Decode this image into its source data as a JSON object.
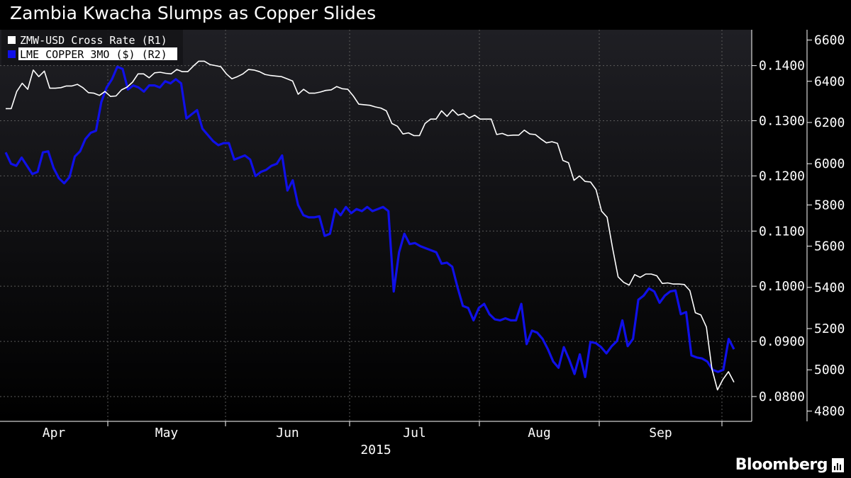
{
  "header": {
    "title": "Zambia Kwacha Slumps as Copper Slides"
  },
  "brand": {
    "name": "Bloomberg"
  },
  "colors": {
    "background_top": "#1f1f24",
    "background_bottom": "#000000",
    "zmw": "#ffffff",
    "copper": "#1010e8"
  },
  "chart_data": {
    "type": "line",
    "title": "Zambia Kwacha Slumps as Copper Slides",
    "x_labels": [
      "Apr",
      "May",
      "Jun",
      "Jul",
      "Aug",
      "Sep"
    ],
    "x_year": "2015",
    "grid": true,
    "legend_position": "top-left",
    "axes": {
      "r1": {
        "min": 0.0755,
        "max": 0.1465,
        "ticks": [
          "0.0800",
          "0.0900",
          "0.1000",
          "0.1100",
          "0.1200",
          "0.1300",
          "0.1400"
        ]
      },
      "r2": {
        "min": 4750,
        "max": 6650,
        "ticks": [
          "4800",
          "5000",
          "5200",
          "5400",
          "5600",
          "5800",
          "6000",
          "6200",
          "6400",
          "6600"
        ]
      }
    },
    "series": [
      {
        "name": "ZMW-USD Cross Rate  (R1)",
        "axis": "r1",
        "values": [
          0.1322,
          0.1322,
          0.1353,
          0.1368,
          0.1357,
          0.1392,
          0.138,
          0.139,
          0.1359,
          0.1359,
          0.136,
          0.1363,
          0.1363,
          0.1366,
          0.136,
          0.1351,
          0.135,
          0.1346,
          0.1353,
          0.1344,
          0.1345,
          0.1356,
          0.1361,
          0.137,
          0.1385,
          0.1385,
          0.1378,
          0.1387,
          0.1388,
          0.1386,
          0.1385,
          0.1393,
          0.1389,
          0.1389,
          0.1399,
          0.1408,
          0.1408,
          0.1402,
          0.14,
          0.1398,
          0.1385,
          0.1376,
          0.138,
          0.1385,
          0.1393,
          0.1392,
          0.1389,
          0.1384,
          0.1382,
          0.1381,
          0.138,
          0.1376,
          0.1372,
          0.1348,
          0.1357,
          0.135,
          0.135,
          0.1352,
          0.1355,
          0.1356,
          0.1362,
          0.1358,
          0.1357,
          0.1345,
          0.133,
          0.1329,
          0.1328,
          0.1325,
          0.1323,
          0.1318,
          0.1295,
          0.129,
          0.1276,
          0.1278,
          0.1273,
          0.1273,
          0.1295,
          0.1303,
          0.1303,
          0.1318,
          0.1308,
          0.132,
          0.131,
          0.1313,
          0.1305,
          0.131,
          0.1303,
          0.1303,
          0.1303,
          0.1275,
          0.1277,
          0.1273,
          0.1274,
          0.1274,
          0.1283,
          0.1276,
          0.1275,
          0.1267,
          0.126,
          0.1262,
          0.1259,
          0.1228,
          0.1224,
          0.1192,
          0.12,
          0.119,
          0.1189,
          0.1175,
          0.1136,
          0.1125,
          0.1069,
          0.1017,
          0.1007,
          0.1002,
          0.1021,
          0.1016,
          0.1022,
          0.1022,
          0.1019,
          0.1005,
          0.1006,
          0.1004,
          0.1004,
          0.1003,
          0.0992,
          0.0952,
          0.0948,
          0.0926,
          0.085,
          0.0812,
          0.0831,
          0.0845,
          0.0826
        ]
      },
      {
        "name": "LME COPPER 3MO ($)  (R2)",
        "axis": "r2",
        "values": [
          6055,
          6000,
          5990,
          6030,
          5990,
          5950,
          5960,
          6055,
          6060,
          5980,
          5930,
          5905,
          5935,
          6035,
          6060,
          6120,
          6150,
          6160,
          6300,
          6370,
          6410,
          6470,
          6460,
          6360,
          6380,
          6370,
          6350,
          6380,
          6380,
          6370,
          6400,
          6390,
          6410,
          6390,
          6220,
          6240,
          6260,
          6170,
          6140,
          6110,
          6090,
          6100,
          6100,
          6020,
          6030,
          6040,
          6020,
          5940,
          5960,
          5970,
          5990,
          6000,
          6040,
          5870,
          5920,
          5800,
          5750,
          5740,
          5740,
          5745,
          5650,
          5660,
          5780,
          5750,
          5790,
          5760,
          5780,
          5770,
          5790,
          5770,
          5780,
          5790,
          5770,
          5380,
          5570,
          5660,
          5610,
          5615,
          5600,
          5590,
          5580,
          5570,
          5515,
          5520,
          5500,
          5400,
          5310,
          5300,
          5240,
          5300,
          5320,
          5270,
          5245,
          5240,
          5250,
          5240,
          5240,
          5320,
          5125,
          5190,
          5180,
          5150,
          5100,
          5040,
          5010,
          5110,
          5050,
          4980,
          5075,
          4965,
          5135,
          5130,
          5110,
          5080,
          5115,
          5140,
          5240,
          5115,
          5150,
          5340,
          5360,
          5395,
          5380,
          5325,
          5360,
          5380,
          5385,
          5270,
          5280,
          5070,
          5060,
          5055,
          5040,
          5000,
          4990,
          5000,
          5150,
          5100
        ]
      }
    ]
  }
}
